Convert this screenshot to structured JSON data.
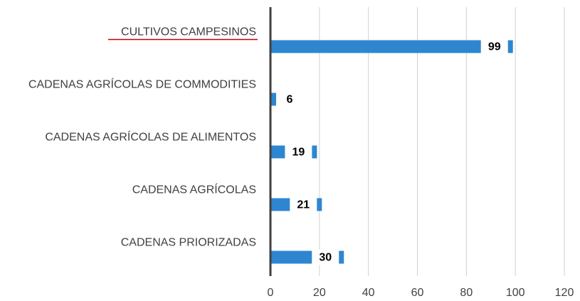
{
  "chart_data": {
    "type": "bar",
    "orientation": "horizontal",
    "categories": [
      "CULTIVOS CAMPESINOS",
      "CADENAS AGRÍCOLAS DE COMMODITIES",
      "CADENAS AGRÍCOLAS DE ALIMENTOS",
      "CADENAS AGRÍCOLAS",
      "CADENAS PRIORIZADAS"
    ],
    "values": [
      99,
      6,
      19,
      21,
      30
    ],
    "color": "#2e86d1",
    "xlim": [
      0,
      120
    ],
    "xticks": [
      0,
      20,
      40,
      60,
      80,
      100,
      120
    ],
    "grid": true
  }
}
